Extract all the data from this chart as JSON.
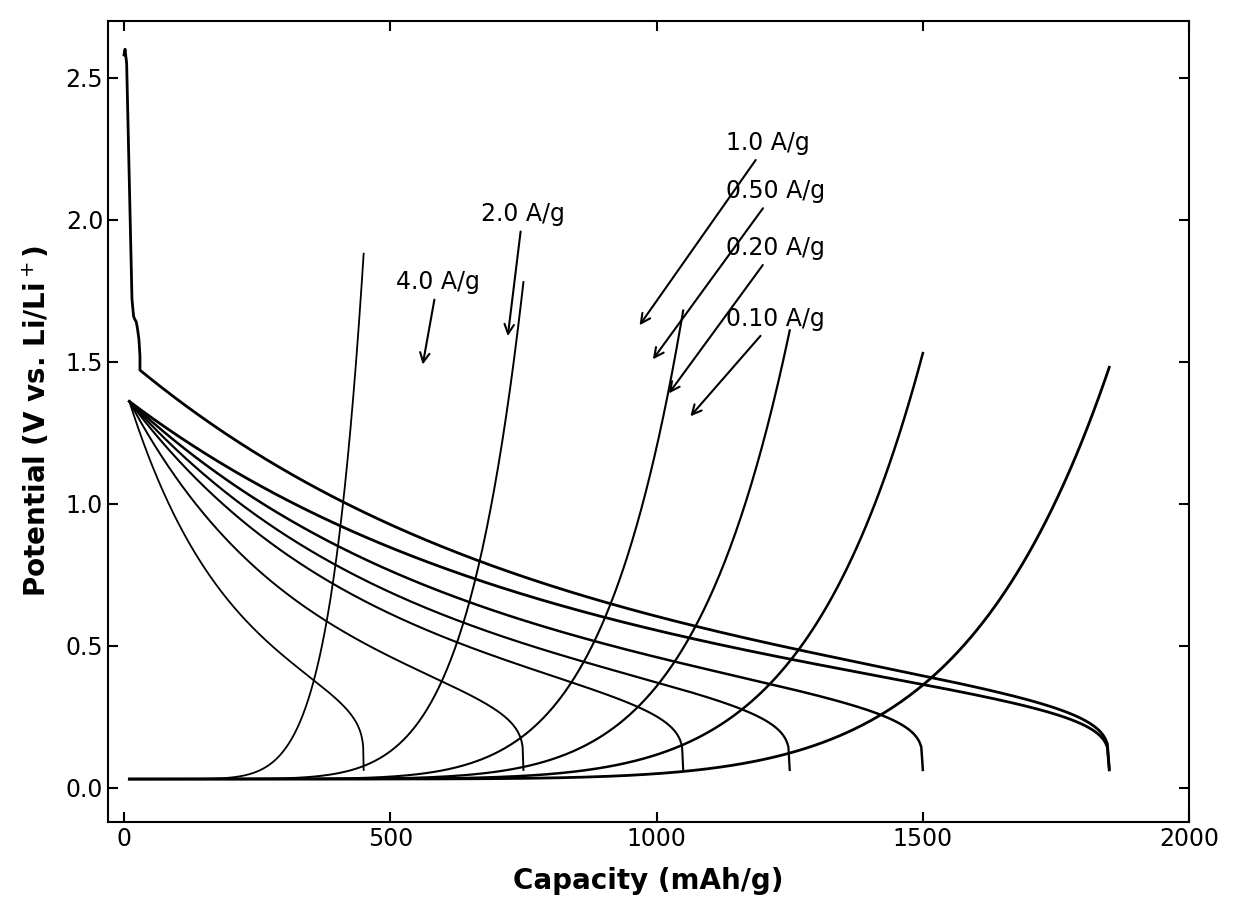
{
  "xlabel": "Capacity (mAh/g)",
  "ylabel": "Potential (V vs. Li/Li$^+$)",
  "xlim": [
    -30,
    2000
  ],
  "ylim": [
    -0.12,
    2.7
  ],
  "xticks": [
    0,
    500,
    1000,
    1500,
    2000
  ],
  "yticks": [
    0.0,
    0.5,
    1.0,
    1.5,
    2.0,
    2.5
  ],
  "dis_caps": [
    1850,
    1500,
    1250,
    1050,
    750,
    450
  ],
  "chg_caps": [
    1850,
    1500,
    1250,
    1050,
    750,
    450
  ],
  "background_color": "#ffffff",
  "line_color": "#000000",
  "annotation_fontsize": 17,
  "axis_fontsize": 20,
  "tick_fontsize": 17
}
